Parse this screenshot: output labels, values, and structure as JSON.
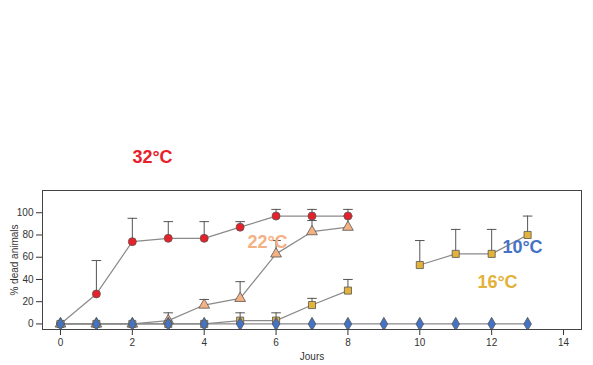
{
  "chart_data": {
    "type": "line",
    "x_label": "Jours",
    "y_label": "% dead animals",
    "x": [
      0,
      1,
      2,
      3,
      4,
      5,
      6,
      7,
      8,
      9,
      10,
      11,
      12,
      13
    ],
    "xlim": [
      -0.5,
      14.5
    ],
    "xticks": [
      0,
      2,
      4,
      6,
      8,
      10,
      12,
      14
    ],
    "ylim": [
      -5,
      120
    ],
    "yticks": [
      0,
      20,
      40,
      60,
      80,
      100
    ],
    "grid": false,
    "series": [
      {
        "name": "32°C",
        "color": "#e8202a",
        "marker": "circle",
        "values": [
          0,
          27,
          74,
          77,
          77,
          87,
          97,
          97,
          97,
          null,
          null,
          null,
          null,
          null
        ],
        "errors": [
          null,
          30,
          21,
          15,
          15,
          5,
          6,
          6,
          6,
          null,
          null,
          null,
          null,
          null
        ]
      },
      {
        "name": "22°C",
        "color": "#f4b183",
        "marker": "triangle",
        "values": [
          0,
          0,
          0,
          3,
          17,
          23,
          63,
          83,
          87,
          null,
          null,
          null,
          null,
          null
        ],
        "errors": [
          null,
          null,
          null,
          7,
          5,
          15,
          12,
          10,
          10,
          null,
          null,
          null,
          null,
          null
        ]
      },
      {
        "name": "16°C",
        "color": "#e2b23a",
        "marker": "square",
        "values": [
          0,
          0,
          0,
          0,
          0,
          3,
          3,
          17,
          30,
          null,
          53,
          63,
          63,
          80
        ],
        "errors": [
          null,
          null,
          null,
          null,
          null,
          7,
          7,
          6,
          10,
          null,
          22,
          22,
          22,
          17
        ]
      },
      {
        "name": "10°C",
        "color": "#4472c4",
        "marker": "diamond",
        "values": [
          0,
          0,
          0,
          0,
          0,
          0,
          0,
          0,
          0,
          0,
          0,
          0,
          0,
          0
        ],
        "errors": [
          null,
          null,
          null,
          null,
          null,
          null,
          null,
          null,
          null,
          null,
          null,
          null,
          null,
          null
        ]
      }
    ]
  }
}
